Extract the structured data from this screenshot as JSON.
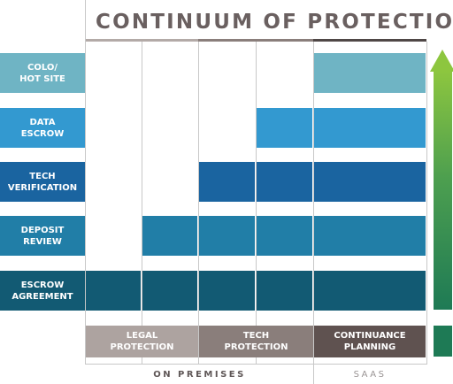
{
  "title": "CONTINUUM OF PROTECTION",
  "levels": [
    {
      "label": "COLO/\nHOT SITE",
      "color": "#6fb4c4"
    },
    {
      "label": "DATA\nESCROW",
      "color": "#3399d0"
    },
    {
      "label": "TECH\nVERIFICATION",
      "color": "#1a64a0"
    },
    {
      "label": "DEPOSIT\nREVIEW",
      "color": "#217ea7"
    },
    {
      "label": "ESCROW\nAGREEMENT",
      "color": "#125a73"
    }
  ],
  "columns": [
    {
      "label": "LEGAL\nPROTECTION",
      "color": "#ada3a0"
    },
    {
      "label": "TECH\nPROTECTION",
      "color": "#8a7e7b"
    },
    {
      "label": "CONTINUANCE\nPLANNING",
      "color": "#5f5250"
    }
  ],
  "groups": [
    {
      "label": "ON PREMISES",
      "color": "#5f5757"
    },
    {
      "label": "SAAS",
      "color": "#9a9494"
    }
  ]
}
